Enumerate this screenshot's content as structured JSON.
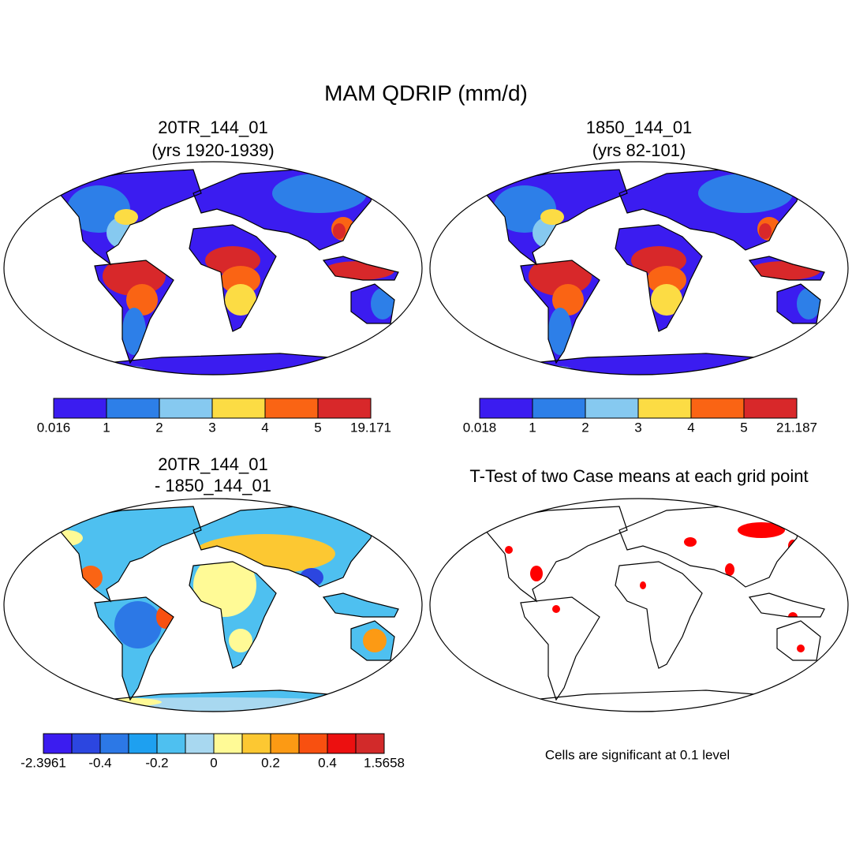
{
  "title": "MAM QDRIP (mm/d)",
  "panels": [
    {
      "title": [
        "20TR_144_01",
        "(yrs 1920-1939)"
      ],
      "style": "mean",
      "colorbar": {
        "colors": [
          "#3b1cf0",
          "#2d7fe8",
          "#86c9f0",
          "#fcdc44",
          "#fa6414",
          "#d8282a"
        ],
        "labels": [
          "0.016",
          "1",
          "2",
          "3",
          "4",
          "5",
          "19.171"
        ]
      }
    },
    {
      "title": [
        "1850_144_01",
        "(yrs 82-101)"
      ],
      "style": "mean",
      "colorbar": {
        "colors": [
          "#3b1cf0",
          "#2d7fe8",
          "#86c9f0",
          "#fcdc44",
          "#fa6414",
          "#d8282a"
        ],
        "labels": [
          "0.018",
          "1",
          "2",
          "3",
          "4",
          "5",
          "21.187"
        ]
      }
    },
    {
      "title": [
        "20TR_144_01",
        "- 1850_144_01"
      ],
      "style": "diff",
      "colorbar": {
        "colors": [
          "#3b1cf0",
          "#2c46e0",
          "#2c78e6",
          "#1ea0f0",
          "#4ec0f0",
          "#a8d8f0",
          "#fffa96",
          "#fcc832",
          "#fc9a14",
          "#f85010",
          "#ec1010",
          "#d22a2a"
        ],
        "labels": [
          "-2.3961",
          "-0.4",
          "-0.2",
          "0",
          "0.2",
          "0.4",
          "1.5658"
        ]
      }
    },
    {
      "title": [
        "T-Test of two Case means at each grid point"
      ],
      "style": "ttest",
      "note": "Cells are significant at 0.1 level"
    }
  ]
}
